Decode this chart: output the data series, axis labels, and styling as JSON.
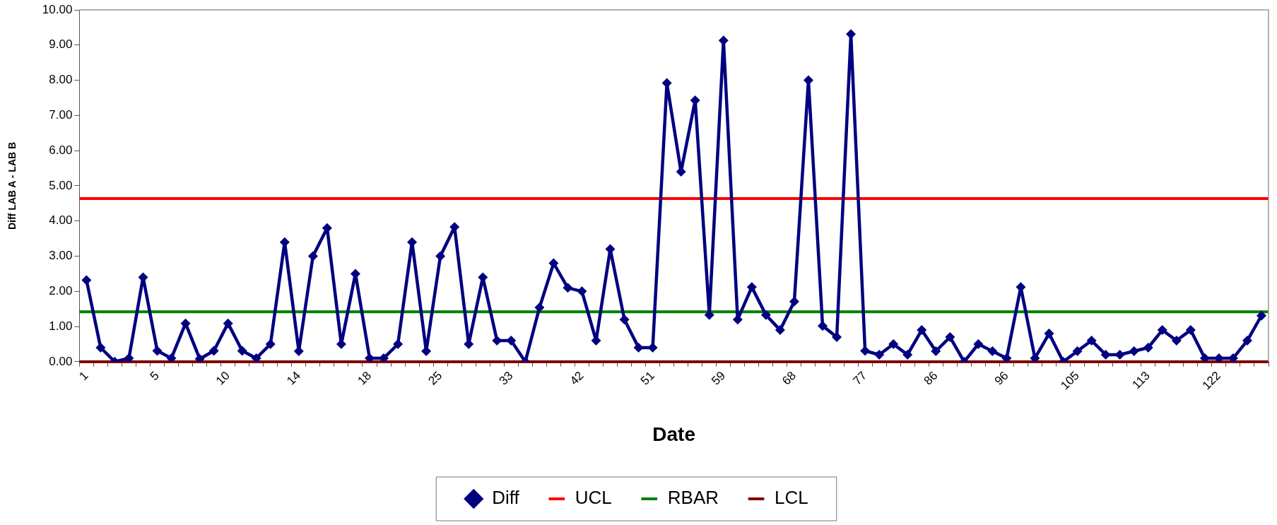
{
  "chart_data": {
    "type": "line",
    "xlabel": "Date",
    "ylabel": "Diff LAB A - LAB B",
    "categories": [
      "1",
      null,
      null,
      null,
      null,
      "5",
      null,
      null,
      null,
      null,
      "10",
      null,
      null,
      null,
      null,
      "14",
      null,
      null,
      null,
      null,
      "18",
      null,
      null,
      null,
      null,
      "25",
      null,
      null,
      null,
      null,
      "33",
      null,
      null,
      null,
      null,
      "42",
      null,
      null,
      null,
      null,
      "51",
      null,
      null,
      null,
      null,
      "59",
      null,
      null,
      null,
      null,
      "68",
      null,
      null,
      null,
      null,
      "77",
      null,
      null,
      null,
      null,
      "86",
      null,
      null,
      null,
      null,
      "96",
      null,
      null,
      null,
      null,
      "105",
      null,
      null,
      null,
      null,
      "113",
      null,
      null,
      null,
      null,
      "122",
      null,
      null,
      null
    ],
    "series": [
      {
        "name": "Diff",
        "color": "#000080",
        "values": [
          2.32,
          0.4,
          0,
          0.1,
          2.4,
          0.31,
          0.1,
          1.09,
          0.08,
          0.31,
          1.09,
          0.31,
          0.1,
          0.5,
          3.4,
          0.3,
          3.0,
          3.8,
          0.5,
          2.5,
          0.1,
          0.1,
          0.5,
          3.4,
          0.3,
          3.0,
          3.83,
          0.5,
          2.4,
          0.6,
          0.6,
          0,
          1.54,
          2.8,
          2.1,
          2.0,
          0.6,
          3.2,
          1.2,
          0.4,
          0.4,
          7.92,
          5.4,
          7.43,
          1.33,
          9.13,
          1.2,
          2.12,
          1.33,
          0.9,
          1.71,
          8.0,
          1.02,
          0.7,
          9.31,
          0.31,
          0.2,
          0.5,
          0.2,
          0.9,
          0.3,
          0.7,
          0,
          0.5,
          0.3,
          0.1,
          2.12,
          0.1,
          0.8,
          0,
          0.3,
          0.6,
          0.2,
          0.2,
          0.3,
          0.4,
          0.9,
          0.6,
          0.9,
          0.1,
          0.1,
          0.1,
          0.6,
          1.31
        ]
      }
    ],
    "ref_lines": [
      {
        "axis": "y",
        "value": 4.64,
        "label": "UCL",
        "color": "#ff0000"
      },
      {
        "axis": "y",
        "value": 1.42,
        "label": "RBAR",
        "color": "#008000"
      },
      {
        "axis": "y",
        "value": 0,
        "label": "LCL",
        "color": "#800000"
      }
    ],
    "ylim": [
      0,
      10
    ],
    "yticks": [
      {
        "value": 0,
        "label": "0.00"
      },
      {
        "value": 1,
        "label": "1.00"
      },
      {
        "value": 2,
        "label": "2.00"
      },
      {
        "value": 3,
        "label": "3.00"
      },
      {
        "value": 4,
        "label": "4.00"
      },
      {
        "value": 5,
        "label": "5.00"
      },
      {
        "value": 6,
        "label": "6.00"
      },
      {
        "value": 7,
        "label": "7.00"
      },
      {
        "value": 8,
        "label": "8.00"
      },
      {
        "value": 9,
        "label": "9.00"
      },
      {
        "value": 10,
        "label": "10.00"
      }
    ],
    "grid": false,
    "legend": "bottom",
    "marker": "diamond",
    "line_style": "solid"
  }
}
